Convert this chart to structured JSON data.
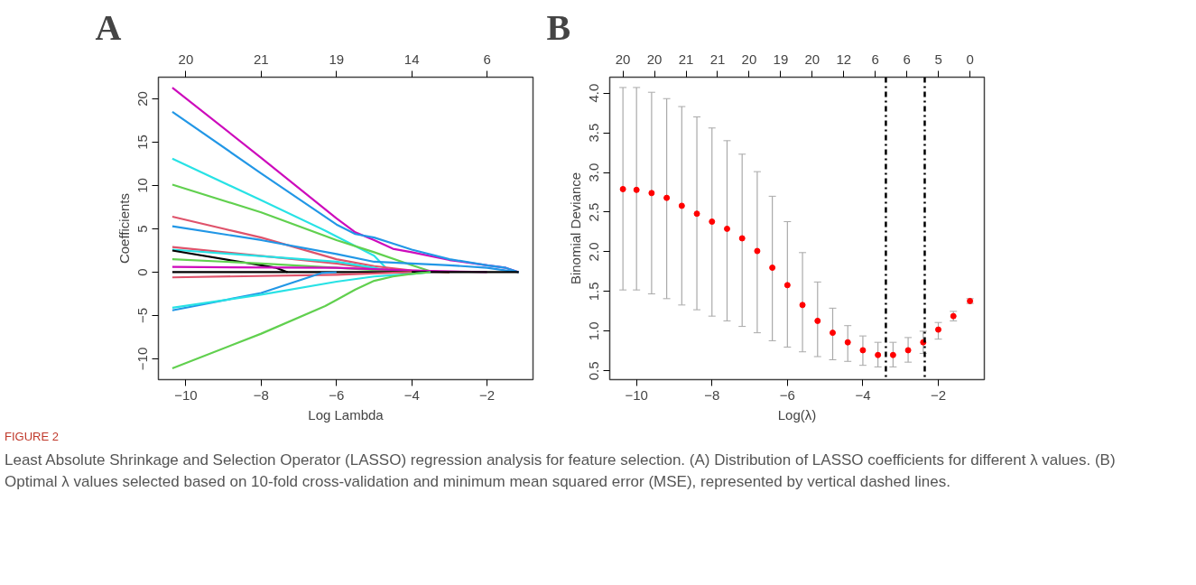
{
  "chart_data": [
    {
      "type": "line",
      "title": "A",
      "xlabel": "Log Lambda",
      "ylabel": "Coefficients",
      "xlim": [
        -10.73,
        -0.78
      ],
      "ylim": [
        -12.4,
        22.5
      ],
      "xticks": [
        -10,
        -8,
        -6,
        -4,
        -2
      ],
      "yticks": [
        -10,
        -5,
        0,
        5,
        10,
        15,
        20
      ],
      "annotations": [
        "20",
        "21",
        "19",
        "14",
        "6"
      ],
      "grid": false,
      "line_style": "solid",
      "marker": "none",
      "series": [
        {
          "color": "#cd0bbc",
          "x": [
            -10.36,
            -8,
            -6,
            -5.5,
            -5,
            -4.5,
            -4,
            -3,
            -2,
            -1.5,
            -1.16
          ],
          "values": [
            21.3,
            13.2,
            6.2,
            4.6,
            3.7,
            2.7,
            2.3,
            1.4,
            0.8,
            0.5,
            0
          ]
        },
        {
          "color": "#2297e6",
          "x": [
            -10.36,
            -8,
            -6,
            -5.5,
            -5,
            -4.5,
            -4,
            -3,
            -2,
            -1.5,
            -1.16
          ],
          "values": [
            18.5,
            11.4,
            5.5,
            4.4,
            4.0,
            3.3,
            2.6,
            1.5,
            0.8,
            0.5,
            0
          ]
        },
        {
          "color": "#28e2e5",
          "x": [
            -10.36,
            -8,
            -6.3,
            -5,
            -4.6,
            -4.5
          ],
          "values": [
            13.1,
            8.3,
            4.8,
            1.9,
            0.1,
            0
          ]
        },
        {
          "color": "#61d04f",
          "x": [
            -10.36,
            -8,
            -6,
            -5,
            -4,
            -3.5,
            -3
          ],
          "values": [
            10.1,
            6.9,
            3.7,
            2.3,
            0.8,
            0.1,
            0
          ]
        },
        {
          "color": "#df536b",
          "x": [
            -10.36,
            -8,
            -6,
            -5,
            -4,
            -3
          ],
          "values": [
            6.4,
            4.0,
            1.5,
            0.7,
            0.2,
            0
          ]
        },
        {
          "color": "#2297e6",
          "x": [
            -10.36,
            -8,
            -6,
            -5,
            -4,
            -3,
            -2,
            -1.5,
            -1.16
          ],
          "values": [
            5.3,
            3.7,
            2.1,
            1.2,
            1.0,
            0.8,
            0.5,
            0.2,
            0
          ]
        },
        {
          "color": "#df536b",
          "x": [
            -10.36,
            -6,
            -5,
            -4,
            -3
          ],
          "values": [
            2.9,
            1.0,
            0.4,
            0.1,
            0
          ]
        },
        {
          "color": "#28e2e5",
          "x": [
            -10.36,
            -6,
            -5,
            -4.5
          ],
          "values": [
            2.6,
            1.2,
            0.5,
            0
          ]
        },
        {
          "color": "#000000",
          "x": [
            -10.36,
            -7.6,
            -7.3
          ],
          "values": [
            2.5,
            0.5,
            0
          ]
        },
        {
          "color": "#61d04f",
          "x": [
            -10.36,
            -8,
            -6,
            -4
          ],
          "values": [
            1.5,
            1.0,
            0.5,
            0
          ]
        },
        {
          "color": "#cd0bbc",
          "x": [
            -10.36,
            -6,
            -4,
            -2
          ],
          "values": [
            0.6,
            0.5,
            0.2,
            0
          ]
        },
        {
          "color": "#000000",
          "x": [
            -10.36,
            -1.16
          ],
          "values": [
            0,
            0
          ]
        },
        {
          "color": "#df536b",
          "x": [
            -10.36,
            -6,
            -4
          ],
          "values": [
            -0.6,
            -0.3,
            0
          ]
        },
        {
          "color": "#2297e6",
          "x": [
            -10.36,
            -8,
            -6.4,
            -6
          ],
          "values": [
            -4.4,
            -2.4,
            -0.1,
            0
          ]
        },
        {
          "color": "#28e2e5",
          "x": [
            -10.36,
            -8,
            -6,
            -5,
            -4,
            -3.5
          ],
          "values": [
            -4.1,
            -2.6,
            -1.1,
            -0.5,
            -0.2,
            0
          ]
        },
        {
          "color": "#61d04f",
          "x": [
            -10.36,
            -8,
            -6.3,
            -6,
            -5.5,
            -5,
            -4.5,
            -4,
            -3.5
          ],
          "values": [
            -11.1,
            -7.1,
            -3.9,
            -3.2,
            -2.0,
            -1.0,
            -0.5,
            -0.2,
            0
          ]
        }
      ]
    },
    {
      "type": "scatter",
      "title": "B",
      "xlabel": "Log(λ)",
      "ylabel": "Binomial Deviance",
      "xlim": [
        -10.71,
        -0.78
      ],
      "ylim": [
        0.39,
        4.2
      ],
      "xticks": [
        -10,
        -8,
        -6,
        -4,
        -2
      ],
      "yticks": [
        0.5,
        {
          "value": 1,
          "label": "1.0"
        },
        1.5,
        {
          "value": 2,
          "label": "2.0"
        },
        2.5,
        {
          "value": 3,
          "label": "3.0"
        },
        3.5,
        {
          "value": 4,
          "label": "4.0"
        }
      ],
      "annotations": [
        "20",
        "20",
        "21",
        "21",
        "20",
        "19",
        "20",
        "12",
        "6",
        "6",
        "5",
        "0"
      ],
      "grid": false,
      "marker": "circle",
      "x": [
        -10.36,
        -10,
        -9.6,
        -9.2,
        -8.8,
        -8.4,
        -8.0,
        -7.6,
        -7.2,
        -6.8,
        -6.4,
        -6.0,
        -5.6,
        -5.2,
        -4.8,
        -4.4,
        -4.0,
        -3.6,
        -3.2,
        -2.8,
        -2.4,
        -2.0,
        -1.6,
        -1.16
      ],
      "series": [
        {
          "color": "#ff0000",
          "values": [
            2.79,
            2.78,
            2.74,
            2.68,
            2.58,
            2.48,
            2.38,
            2.29,
            2.17,
            2.01,
            1.8,
            1.58,
            1.33,
            1.13,
            0.98,
            0.86,
            0.76,
            0.7,
            0.7,
            0.76,
            0.86,
            1.02,
            1.19,
            1.38
          ],
          "errors": [
            [
              1.52,
              4.07
            ],
            [
              1.52,
              4.07
            ],
            [
              1.47,
              4.01
            ],
            [
              1.41,
              3.93
            ],
            [
              1.33,
              3.83
            ],
            [
              1.27,
              3.7
            ],
            [
              1.19,
              3.56
            ],
            [
              1.13,
              3.4
            ],
            [
              1.06,
              3.23
            ],
            [
              0.98,
              3.01
            ],
            [
              0.88,
              2.7
            ],
            [
              0.8,
              2.38
            ],
            [
              0.74,
              1.99
            ],
            [
              0.68,
              1.62
            ],
            [
              0.64,
              1.29
            ],
            [
              0.62,
              1.07
            ],
            [
              0.57,
              0.94
            ],
            [
              0.55,
              0.86
            ],
            [
              0.55,
              0.86
            ],
            [
              0.61,
              0.92
            ],
            [
              0.72,
              1.0
            ],
            [
              0.9,
              1.11
            ],
            [
              1.13,
              1.25
            ],
            [
              1.35,
              1.41
            ]
          ]
        }
      ],
      "ref_lines": [
        {
          "axis": "x",
          "value": -3.39,
          "color": "#000000",
          "line_style": "dashdot"
        },
        {
          "axis": "x",
          "value": -2.36,
          "color": "#000000",
          "line_style": "dashdot"
        }
      ]
    },
    {
      "type": "other",
      "annotations": [
        "FIGURE 2",
        "Least Absolute Shrinkage and Selection Operator (LASSO) regression analysis for feature selection. (A) Distribution of LASSO coefficients for different λ values. (B) Optimal λ values selected based on 10-fold cross-validation and minimum mean squared error (MSE), represented by vertical dashed lines."
      ]
    }
  ]
}
